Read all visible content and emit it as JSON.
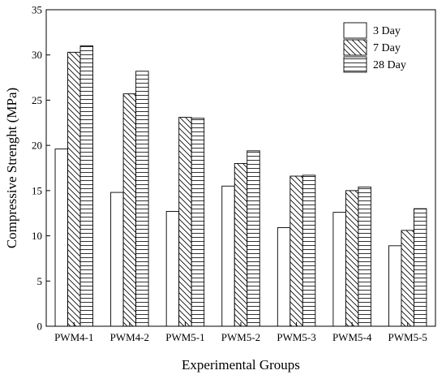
{
  "chart_data": {
    "type": "bar",
    "title": "",
    "xlabel": "Experimental Groups",
    "ylabel": "Compressive Strenght (MPa)",
    "ylim": [
      0,
      35
    ],
    "yticks": [
      0,
      5,
      10,
      15,
      20,
      25,
      30,
      35
    ],
    "grid": false,
    "legend_position": "top-right",
    "categories": [
      "PWM4-1",
      "PWM4-2",
      "PWM5-1",
      "PWM5-2",
      "PWM5-3",
      "PWM5-4",
      "PWM5-5"
    ],
    "series": [
      {
        "name": "3 Day",
        "pattern": "blank",
        "values": [
          19.6,
          14.8,
          12.7,
          15.5,
          10.9,
          12.6,
          8.9
        ]
      },
      {
        "name": "7 Day",
        "pattern": "diagonal",
        "values": [
          30.3,
          25.7,
          23.1,
          18.0,
          16.6,
          15.0,
          10.6
        ]
      },
      {
        "name": "28 Day",
        "pattern": "horizontal",
        "values": [
          31.0,
          28.2,
          23.0,
          19.4,
          16.7,
          15.4,
          13.0
        ]
      }
    ]
  }
}
